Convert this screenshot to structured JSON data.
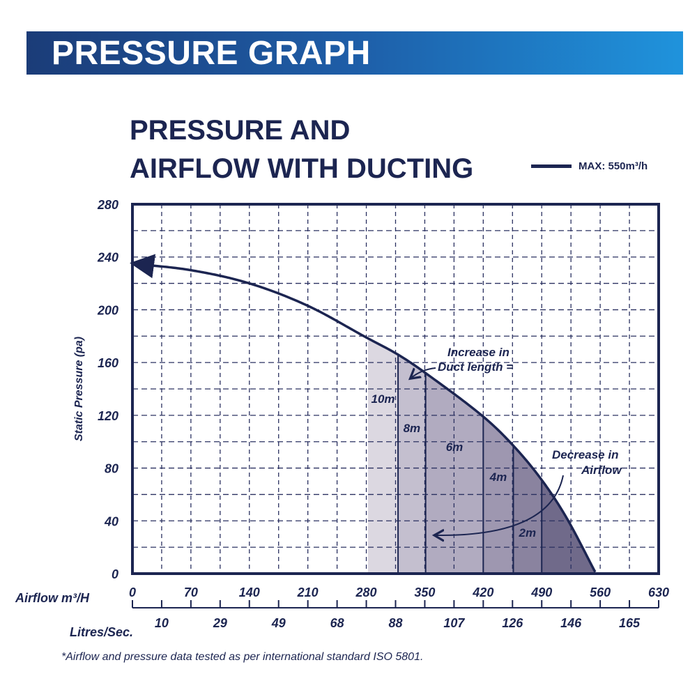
{
  "header": {
    "banner": "PRESSURE GRAPH",
    "title_line1": "PRESSURE AND",
    "title_line2": "AIRFLOW WITH DUCTING"
  },
  "legend": {
    "label": "MAX: 550m³/h"
  },
  "footnote": "*Airflow and pressure data tested as per international standard ISO 5801.",
  "colors": {
    "navy": "#1c2551",
    "banner_start": "#1b3c78",
    "banner_end": "#1f93dc"
  },
  "chart_data": {
    "type": "area",
    "ylabel": "Static Pressure (pa)",
    "xlabel": "Airflow m³/H",
    "x2label": "Litres/Sec.",
    "xlim": [
      0,
      630
    ],
    "ylim": [
      0,
      280
    ],
    "grid": true,
    "yticks": [
      0,
      40,
      80,
      120,
      160,
      200,
      240,
      280
    ],
    "xticks": [
      0,
      70,
      140,
      210,
      280,
      350,
      420,
      490,
      560,
      630
    ],
    "x2ticks": [
      {
        "at": 35,
        "label": "10"
      },
      {
        "at": 105,
        "label": "29"
      },
      {
        "at": 175,
        "label": "49"
      },
      {
        "at": 245,
        "label": "68"
      },
      {
        "at": 315,
        "label": "88"
      },
      {
        "at": 385,
        "label": "107"
      },
      {
        "at": 455,
        "label": "126"
      },
      {
        "at": 525,
        "label": "146"
      },
      {
        "at": 595,
        "label": "165"
      }
    ],
    "curve": [
      [
        0,
        235
      ],
      [
        70,
        230
      ],
      [
        140,
        220
      ],
      [
        210,
        203
      ],
      [
        280,
        179
      ],
      [
        318,
        166
      ],
      [
        351,
        152
      ],
      [
        420,
        119
      ],
      [
        456,
        97
      ],
      [
        490,
        71
      ],
      [
        520,
        42
      ],
      [
        555,
        0
      ]
    ],
    "bands": [
      {
        "from": 282,
        "to": 318,
        "label": "10m",
        "color": "#dcd8e1"
      },
      {
        "from": 318,
        "to": 351,
        "label": "8m",
        "color": "#c4bfcf"
      },
      {
        "from": 351,
        "to": 420,
        "label": "6m",
        "color": "#b1abc0"
      },
      {
        "from": 420,
        "to": 456,
        "label": "4m",
        "color": "#9e97b0"
      },
      {
        "from": 456,
        "to": 490,
        "label": "2m",
        "color": "#8a839f"
      },
      {
        "from": 490,
        "to": 555,
        "label": "",
        "color": "#706a8a"
      }
    ],
    "annotations": [
      "Increase in",
      "Duct length =",
      "Decrease in",
      "Airflow"
    ]
  }
}
